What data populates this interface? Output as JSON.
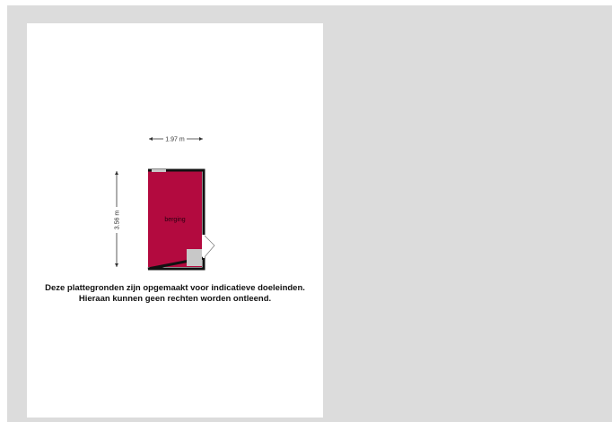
{
  "plan": {
    "width_label": "1.97 m",
    "height_label": "3.56 m",
    "room_label": "berging",
    "colors": {
      "room_fill": "#b30a3f",
      "wall": "#111111",
      "fixture": "#c8c8c8",
      "viewer_bg": "#dcdcdc"
    }
  },
  "disclaimer": {
    "line1": "Deze plattegronden zijn opgemaakt voor indicatieve doeleinden.",
    "line2": "Hieraan kunnen geen rechten worden ontleend."
  }
}
